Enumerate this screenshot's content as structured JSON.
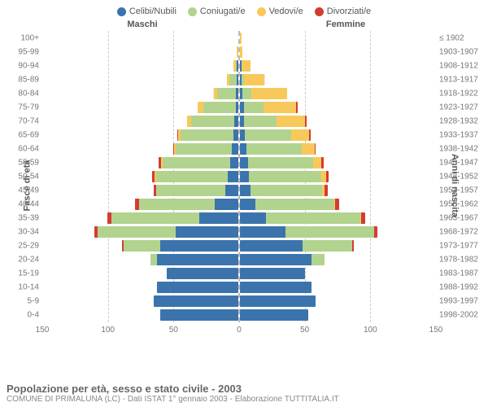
{
  "legend": [
    {
      "label": "Celibi/Nubili",
      "color": "#3b74ad"
    },
    {
      "label": "Coniugati/e",
      "color": "#b2d38e"
    },
    {
      "label": "Vedovi/e",
      "color": "#f8c95a"
    },
    {
      "label": "Divorziati/e",
      "color": "#d43c32"
    }
  ],
  "header_left": "Maschi",
  "header_right": "Femmine",
  "y_left_title": "Fasce di età",
  "y_right_title": "Anni di nascita",
  "x_max": 150,
  "x_ticks": [
    150,
    100,
    50,
    0,
    50,
    100,
    150
  ],
  "colors": {
    "single": "#3b74ad",
    "married": "#b2d38e",
    "widowed": "#f8c95a",
    "divorced": "#d43c32",
    "grid": "#cccccc",
    "text": "#777777",
    "bg": "#ffffff"
  },
  "rows": [
    {
      "age": "100+",
      "birth": "≤ 1902",
      "m": [
        0,
        0,
        0,
        0
      ],
      "f": [
        0,
        0,
        1,
        0
      ]
    },
    {
      "age": "95-99",
      "birth": "1903-1907",
      "m": [
        0,
        0,
        1,
        0
      ],
      "f": [
        0,
        0,
        2,
        0
      ]
    },
    {
      "age": "90-94",
      "birth": "1908-1912",
      "m": [
        1,
        1,
        2,
        0
      ],
      "f": [
        1,
        0,
        7,
        0
      ]
    },
    {
      "age": "85-89",
      "birth": "1913-1917",
      "m": [
        1,
        6,
        2,
        0
      ],
      "f": [
        1,
        2,
        16,
        0
      ]
    },
    {
      "age": "80-84",
      "birth": "1918-1922",
      "m": [
        2,
        14,
        3,
        0
      ],
      "f": [
        2,
        7,
        27,
        0
      ]
    },
    {
      "age": "75-79",
      "birth": "1923-1927",
      "m": [
        2,
        25,
        4,
        0
      ],
      "f": [
        3,
        15,
        25,
        1
      ]
    },
    {
      "age": "70-74",
      "birth": "1928-1932",
      "m": [
        3,
        33,
        3,
        0
      ],
      "f": [
        3,
        25,
        22,
        1
      ]
    },
    {
      "age": "65-69",
      "birth": "1933-1937",
      "m": [
        4,
        40,
        2,
        1
      ],
      "f": [
        4,
        35,
        14,
        1
      ]
    },
    {
      "age": "60-64",
      "birth": "1938-1942",
      "m": [
        5,
        43,
        1,
        1
      ],
      "f": [
        5,
        42,
        10,
        1
      ]
    },
    {
      "age": "55-59",
      "birth": "1943-1947",
      "m": [
        6,
        52,
        1,
        2
      ],
      "f": [
        6,
        50,
        6,
        2
      ]
    },
    {
      "age": "50-54",
      "birth": "1948-1952",
      "m": [
        8,
        55,
        1,
        2
      ],
      "f": [
        7,
        55,
        4,
        2
      ]
    },
    {
      "age": "45-49",
      "birth": "1953-1957",
      "m": [
        10,
        53,
        0,
        2
      ],
      "f": [
        8,
        55,
        2,
        2
      ]
    },
    {
      "age": "40-44",
      "birth": "1958-1962",
      "m": [
        18,
        58,
        0,
        3
      ],
      "f": [
        12,
        60,
        1,
        3
      ]
    },
    {
      "age": "35-39",
      "birth": "1963-1967",
      "m": [
        30,
        67,
        0,
        3
      ],
      "f": [
        20,
        72,
        1,
        3
      ]
    },
    {
      "age": "30-34",
      "birth": "1968-1972",
      "m": [
        48,
        60,
        0,
        2
      ],
      "f": [
        35,
        68,
        0,
        2
      ]
    },
    {
      "age": "25-29",
      "birth": "1973-1977",
      "m": [
        60,
        28,
        0,
        1
      ],
      "f": [
        48,
        38,
        0,
        1
      ]
    },
    {
      "age": "20-24",
      "birth": "1978-1982",
      "m": [
        62,
        5,
        0,
        0
      ],
      "f": [
        55,
        10,
        0,
        0
      ]
    },
    {
      "age": "15-19",
      "birth": "1983-1987",
      "m": [
        55,
        0,
        0,
        0
      ],
      "f": [
        50,
        0,
        0,
        0
      ]
    },
    {
      "age": "10-14",
      "birth": "1988-1992",
      "m": [
        62,
        0,
        0,
        0
      ],
      "f": [
        55,
        0,
        0,
        0
      ]
    },
    {
      "age": "5-9",
      "birth": "1993-1997",
      "m": [
        65,
        0,
        0,
        0
      ],
      "f": [
        58,
        0,
        0,
        0
      ]
    },
    {
      "age": "0-4",
      "birth": "1998-2002",
      "m": [
        60,
        0,
        0,
        0
      ],
      "f": [
        52,
        0,
        0,
        0
      ]
    }
  ],
  "footer_title": "Popolazione per età, sesso e stato civile - 2003",
  "footer_sub": "COMUNE DI PRIMALUNA (LC) - Dati ISTAT 1° gennaio 2003 - Elaborazione TUTTITALIA.IT"
}
